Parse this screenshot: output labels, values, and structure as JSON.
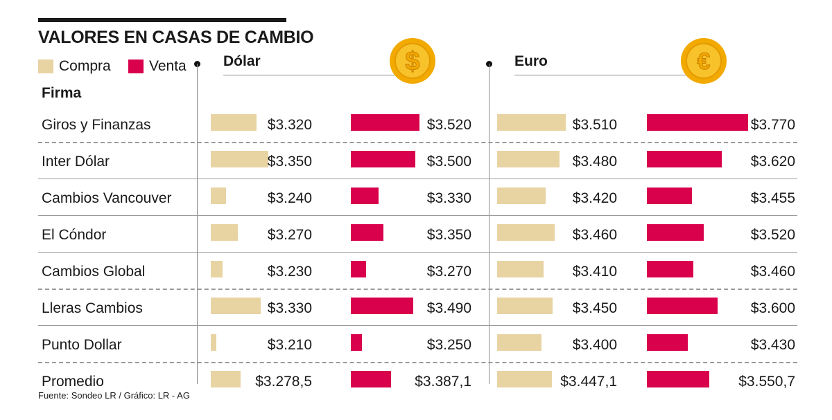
{
  "title": "VALORES EN CASAS DE CAMBIO",
  "legend": {
    "compra": "Compra",
    "venta": "Venta"
  },
  "firma_label": "Firma",
  "currency_headers": {
    "dolar": "Dólar",
    "euro": "Euro"
  },
  "coin_symbols": {
    "dolar": "$",
    "euro": "€"
  },
  "colors": {
    "compra": "#e8d3a3",
    "venta": "#d9004c",
    "coin_outer": "#f2a900",
    "coin_inner": "#f7c22a"
  },
  "source": "Fuente: Sondeo LR / Gráfico: LR - AG",
  "chart_data": {
    "type": "bar",
    "categories": [
      "Giros y Finanzas",
      "Inter Dólar",
      "Cambios Vancouver",
      "El Cóndor",
      "Cambios Global",
      "Lleras Cambios",
      "Punto Dollar",
      "Promedio"
    ],
    "series": [
      {
        "name": "Compra",
        "currency": "Dólar",
        "values": [
          3320,
          3350,
          3240,
          3270,
          3230,
          3330,
          3210,
          3278.5
        ],
        "labels": [
          "$3.320",
          "$3.350",
          "$3.240",
          "$3.270",
          "$3.230",
          "$3.330",
          "$3.210",
          "$3.278,5"
        ]
      },
      {
        "name": "Venta",
        "currency": "Dólar",
        "values": [
          3520,
          3500,
          3330,
          3350,
          3270,
          3490,
          3250,
          3387.1
        ],
        "labels": [
          "$3.520",
          "$3.500",
          "$3.330",
          "$3.350",
          "$3.270",
          "$3.490",
          "$3.250",
          "$3.387,1"
        ]
      },
      {
        "name": "Compra",
        "currency": "Euro",
        "values": [
          3510,
          3480,
          3420,
          3460,
          3410,
          3450,
          3400,
          3447.1
        ],
        "labels": [
          "$3.510",
          "$3.480",
          "$3.420",
          "$3.460",
          "$3.410",
          "$3.450",
          "$3.400",
          "$3.447,1"
        ]
      },
      {
        "name": "Venta",
        "currency": "Euro",
        "values": [
          3770,
          3620,
          3455,
          3520,
          3460,
          3600,
          3430,
          3550.7
        ],
        "labels": [
          "$3.770",
          "$3.620",
          "$3.455",
          "$3.520",
          "$3.460",
          "$3.600",
          "$3.430",
          "$3.550,7"
        ]
      }
    ],
    "title": "VALORES EN CASAS DE CAMBIO",
    "legend_position": "top-left",
    "grid": false
  }
}
